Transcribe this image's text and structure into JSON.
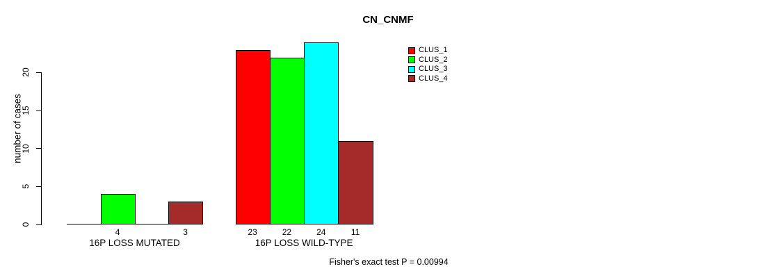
{
  "title": "CN_CNMF",
  "footer": "Fisher's exact test P = 0.00994",
  "y_axis": {
    "label": "number of cases"
  },
  "chart_data": {
    "type": "bar",
    "title": "CN_CNMF",
    "xlabel": "",
    "ylabel": "number of cases",
    "categories": [
      "16P LOSS MUTATED",
      "16P LOSS WILD-TYPE"
    ],
    "series": [
      {
        "name": "CLUS_1",
        "color": "#FF0000",
        "values": [
          0,
          23
        ]
      },
      {
        "name": "CLUS_2",
        "color": "#00FF00",
        "values": [
          4,
          22
        ]
      },
      {
        "name": "CLUS_3",
        "color": "#00FFFF",
        "values": [
          0,
          24
        ]
      },
      {
        "name": "CLUS_4",
        "color": "#A52A2A",
        "values": [
          3,
          11
        ]
      }
    ],
    "yticks": [
      0,
      5,
      10,
      15,
      20
    ],
    "ylim": [
      0,
      24
    ],
    "grid": false,
    "legend_position": "top-right",
    "legend_entries": [
      "CLUS_1",
      "CLUS_2",
      "CLUS_3",
      "CLUS_4"
    ],
    "bar_value_labels": true,
    "zero_bars_drawn_as_baseline_segments": true,
    "annotation": "Fisher's exact test P = 0.00994",
    "colors": {
      "axis": "#000000",
      "bar_border": "#000000",
      "background": "#FFFFFF"
    }
  }
}
